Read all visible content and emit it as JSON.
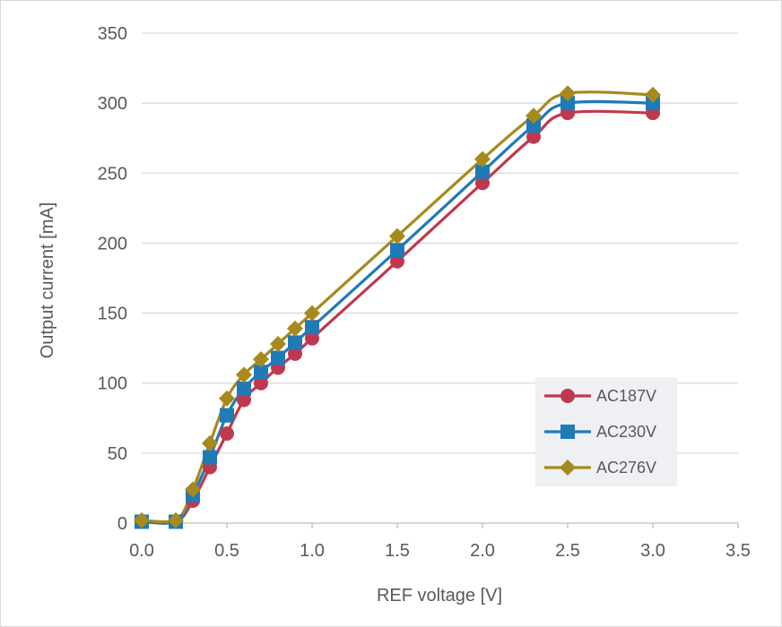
{
  "chart_data": {
    "type": "line",
    "xlabel": "REF voltage [V]",
    "ylabel": "Output current [mA]",
    "xlim": [
      0,
      3.5
    ],
    "ylim": [
      0,
      350
    ],
    "x_ticks": [
      "0.0",
      "0.5",
      "1.0",
      "1.5",
      "2.0",
      "2.5",
      "3.0",
      "3.5"
    ],
    "y_ticks": [
      "0",
      "50",
      "100",
      "150",
      "200",
      "250",
      "300",
      "350"
    ],
    "grid": "horizontal",
    "legend_position": "bottom-right",
    "x": [
      0.0,
      0.2,
      0.3,
      0.4,
      0.5,
      0.6,
      0.7,
      0.8,
      0.9,
      1.0,
      1.5,
      2.0,
      2.3,
      2.5,
      3.0
    ],
    "series": [
      {
        "name": "AC187V",
        "color": "#c0384f",
        "marker": "circle",
        "values": [
          1,
          1,
          16,
          40,
          64,
          88,
          100,
          111,
          121,
          132,
          187,
          243,
          276,
          293,
          293
        ]
      },
      {
        "name": "AC230V",
        "color": "#1f7ab8",
        "marker": "square",
        "values": [
          1,
          1,
          20,
          47,
          77,
          96,
          108,
          118,
          129,
          140,
          195,
          251,
          284,
          300,
          300
        ]
      },
      {
        "name": "AC276V",
        "color": "#a68a1c",
        "marker": "diamond",
        "values": [
          2,
          2,
          24,
          57,
          89,
          106,
          117,
          128,
          139,
          150,
          205,
          260,
          291,
          307,
          306
        ]
      }
    ]
  }
}
